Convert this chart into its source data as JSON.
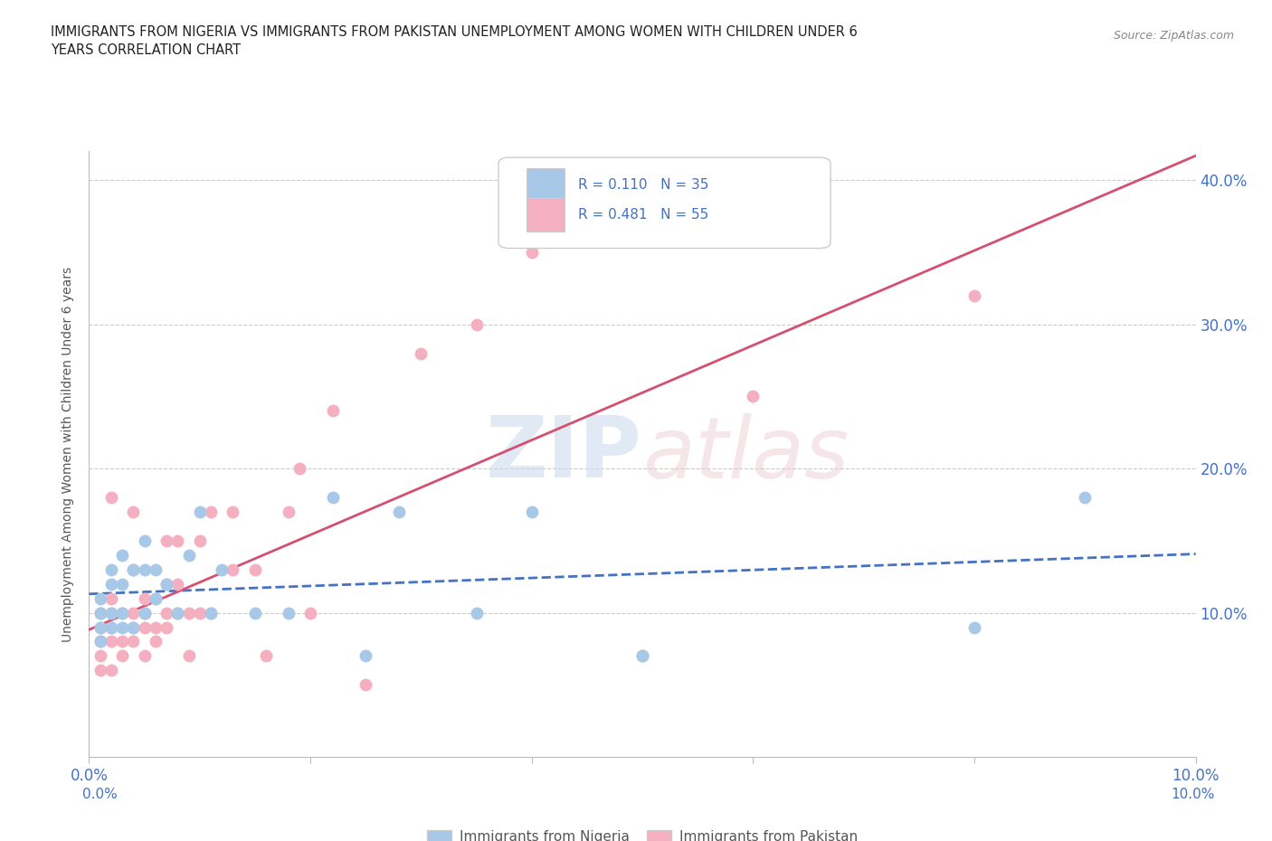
{
  "title": "IMMIGRANTS FROM NIGERIA VS IMMIGRANTS FROM PAKISTAN UNEMPLOYMENT AMONG WOMEN WITH CHILDREN UNDER 6\nYEARS CORRELATION CHART",
  "source": "Source: ZipAtlas.com",
  "ylabel": "Unemployment Among Women with Children Under 6 years",
  "xlim": [
    0.0,
    0.1
  ],
  "ylim": [
    0.0,
    0.42
  ],
  "x_ticks": [
    0.0,
    0.02,
    0.04,
    0.06,
    0.08,
    0.1
  ],
  "x_tick_labels": [
    "0.0%",
    "",
    "",
    "",
    "",
    "10.0%"
  ],
  "y_ticks": [
    0.0,
    0.1,
    0.2,
    0.3,
    0.4
  ],
  "y_tick_labels": [
    "",
    "10.0%",
    "20.0%",
    "30.0%",
    "40.0%"
  ],
  "nigeria_color": "#a8c8e8",
  "pakistan_color": "#f4afc0",
  "nigeria_line_color": "#4472c4",
  "pakistan_line_color": "#d45070",
  "nigeria_R": 0.11,
  "nigeria_N": 35,
  "pakistan_R": 0.481,
  "pakistan_N": 55,
  "watermark_zip": "ZIP",
  "watermark_atlas": "atlas",
  "nigeria_x": [
    0.001,
    0.001,
    0.001,
    0.001,
    0.002,
    0.002,
    0.002,
    0.002,
    0.003,
    0.003,
    0.003,
    0.003,
    0.004,
    0.004,
    0.005,
    0.005,
    0.005,
    0.006,
    0.006,
    0.007,
    0.008,
    0.009,
    0.01,
    0.011,
    0.012,
    0.015,
    0.018,
    0.022,
    0.025,
    0.028,
    0.035,
    0.04,
    0.05,
    0.08,
    0.09
  ],
  "nigeria_y": [
    0.08,
    0.09,
    0.1,
    0.11,
    0.09,
    0.1,
    0.12,
    0.13,
    0.09,
    0.1,
    0.12,
    0.14,
    0.09,
    0.13,
    0.1,
    0.13,
    0.15,
    0.11,
    0.13,
    0.12,
    0.1,
    0.14,
    0.17,
    0.1,
    0.13,
    0.1,
    0.1,
    0.18,
    0.07,
    0.17,
    0.1,
    0.17,
    0.07,
    0.09,
    0.18
  ],
  "pakistan_x": [
    0.001,
    0.001,
    0.001,
    0.001,
    0.001,
    0.002,
    0.002,
    0.002,
    0.002,
    0.002,
    0.002,
    0.003,
    0.003,
    0.003,
    0.004,
    0.004,
    0.004,
    0.004,
    0.004,
    0.005,
    0.005,
    0.005,
    0.005,
    0.006,
    0.006,
    0.006,
    0.007,
    0.007,
    0.007,
    0.007,
    0.008,
    0.008,
    0.008,
    0.009,
    0.009,
    0.01,
    0.01,
    0.011,
    0.011,
    0.013,
    0.013,
    0.015,
    0.016,
    0.018,
    0.019,
    0.02,
    0.022,
    0.025,
    0.03,
    0.035,
    0.04,
    0.05,
    0.06,
    0.065,
    0.08
  ],
  "pakistan_y": [
    0.06,
    0.07,
    0.08,
    0.09,
    0.1,
    0.06,
    0.08,
    0.09,
    0.1,
    0.11,
    0.18,
    0.07,
    0.08,
    0.1,
    0.08,
    0.09,
    0.1,
    0.13,
    0.17,
    0.07,
    0.09,
    0.1,
    0.11,
    0.08,
    0.09,
    0.11,
    0.09,
    0.1,
    0.12,
    0.15,
    0.1,
    0.12,
    0.15,
    0.07,
    0.1,
    0.1,
    0.15,
    0.1,
    0.17,
    0.13,
    0.17,
    0.13,
    0.07,
    0.17,
    0.2,
    0.1,
    0.24,
    0.05,
    0.28,
    0.3,
    0.35,
    0.07,
    0.25,
    0.37,
    0.32
  ]
}
